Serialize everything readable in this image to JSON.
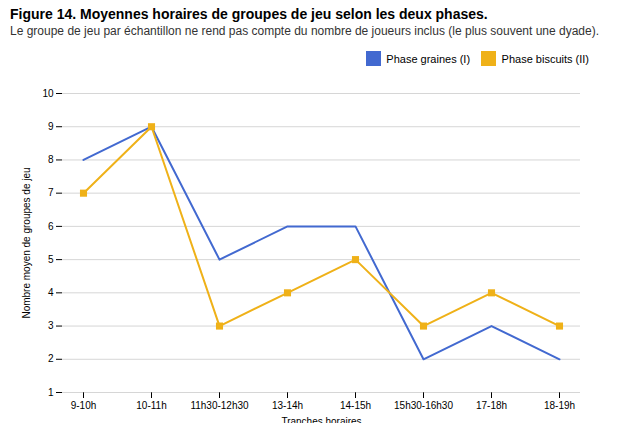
{
  "chart_data": {
    "type": "line",
    "title": "Figure 14. Moyennes horaires de groupes de jeu selon les deux phases.",
    "subtitle": "Le groupe de jeu par échantillon ne rend pas compte du nombre de joueurs inclus (le plus souvent une dyade).",
    "xlabel": "Tranches horaires",
    "ylabel": "Nombre moyen de groupes de jeu",
    "categories": [
      "9-10h",
      "10-11h",
      "11h30-12h30",
      "13-14h",
      "14-15h",
      "15h30-16h30",
      "17-18h",
      "18-19h"
    ],
    "series": [
      {
        "name": "Phase graines (I)",
        "values": [
          8,
          9,
          5,
          6,
          6,
          2,
          3,
          2
        ],
        "marker": "none"
      },
      {
        "name": "Phase biscuits (II)",
        "values": [
          7,
          9,
          3,
          4,
          5,
          3,
          4,
          3
        ],
        "marker": "square"
      }
    ],
    "ylim": [
      1,
      10
    ],
    "yticks": [
      1,
      2,
      3,
      4,
      5,
      6,
      7,
      8,
      9,
      10
    ],
    "grid": true,
    "legend": "top-right"
  }
}
